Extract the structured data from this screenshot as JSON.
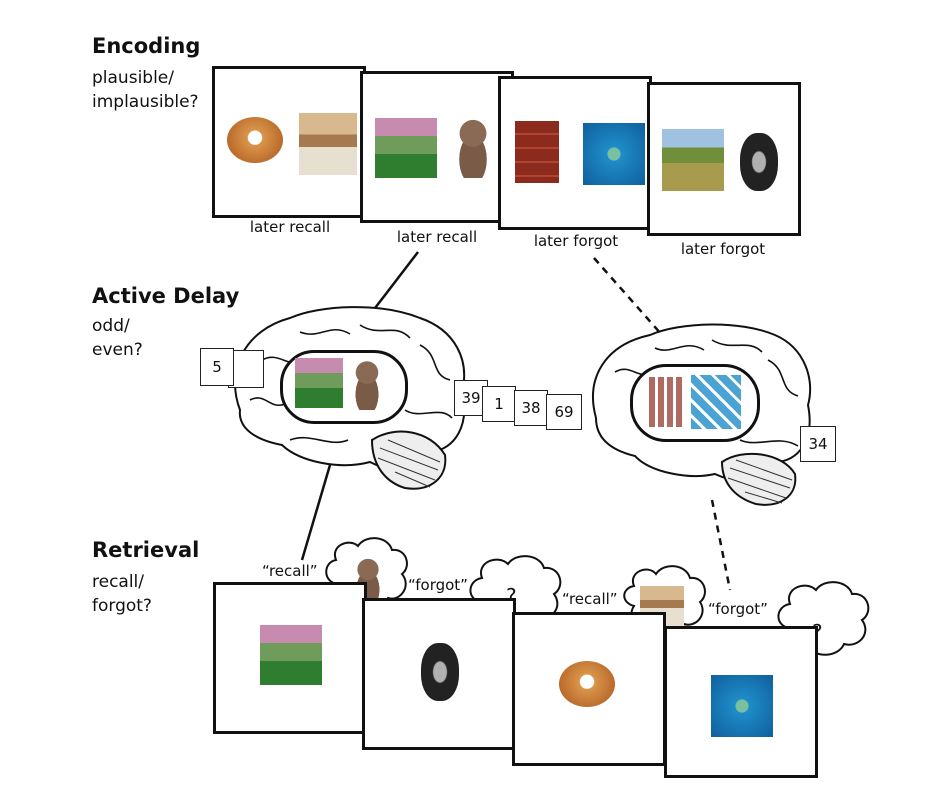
{
  "encoding": {
    "heading": "Encoding",
    "prompt": "plausible/\nimplausible?",
    "captions": [
      "later recall",
      "later recall",
      "later forgot",
      "later forgot"
    ],
    "pairs": [
      [
        "bagel-image",
        "kitchen-image"
      ],
      [
        "golf-course-image",
        "teddy-bear-image"
      ],
      [
        "dresser-image",
        "island-image"
      ],
      [
        "field-image",
        "tire-image"
      ]
    ]
  },
  "delay": {
    "heading": "Active Delay",
    "prompt": "odd/\neven?",
    "numbers": [
      "5",
      "39",
      "1",
      "38",
      "69",
      "34"
    ]
  },
  "retrieval": {
    "heading": "Retrieval",
    "prompt": "recall/\nforgot?",
    "responses": [
      "“recall”",
      "“forgot”",
      "“recall”",
      "“forgot”"
    ],
    "unknown_mark": "?"
  }
}
